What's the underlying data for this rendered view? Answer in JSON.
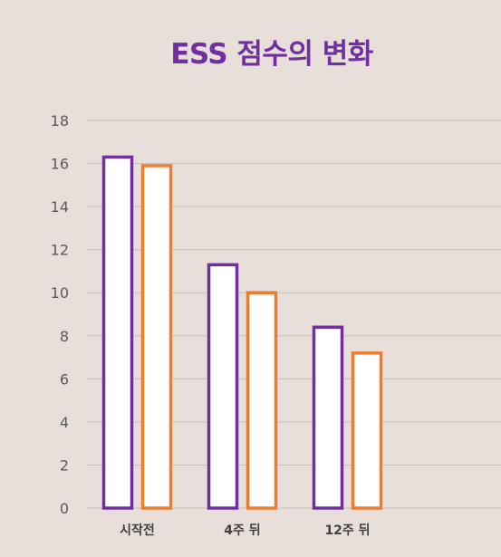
{
  "chart_data": {
    "type": "bar",
    "title": "ESS 점수의 변화",
    "categories": [
      "시작전",
      "4주 뒤",
      "12주 뒤"
    ],
    "series": [
      {
        "values": [
          16.3,
          11.3,
          8.4
        ],
        "color": "#7030a0"
      },
      {
        "values": [
          15.9,
          10.0,
          7.2
        ],
        "color": "#ed7d31"
      }
    ],
    "ylim": [
      0,
      18
    ],
    "yticks": [
      0,
      2,
      4,
      6,
      8,
      10,
      12,
      14,
      16,
      18
    ],
    "grid": true,
    "legend": "none",
    "bar_fill": "#ffffff",
    "gridline_color": "#c9bfbb"
  }
}
